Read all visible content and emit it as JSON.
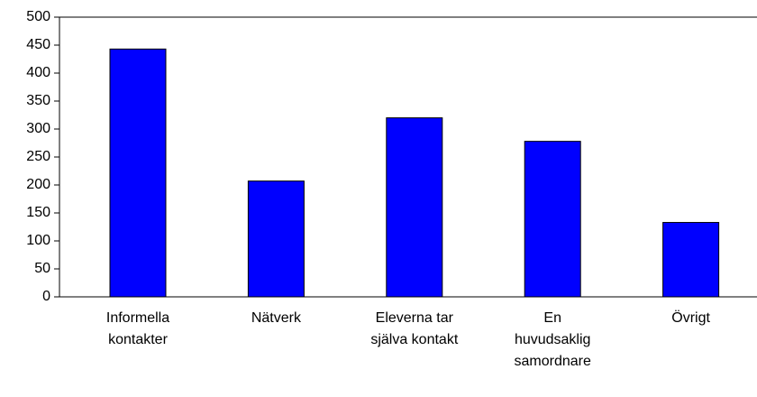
{
  "chart_data": {
    "type": "bar",
    "categories": [
      "Informella kontakter",
      "Nätverk",
      "Eleverna tar själva kontakt",
      "En huvudsaklig samordnare",
      "Övrigt"
    ],
    "values": [
      443,
      207,
      320,
      278,
      133
    ],
    "color": "#0000ff",
    "ylim": [
      0,
      500
    ],
    "yticks": [
      0,
      50,
      100,
      150,
      200,
      250,
      300,
      350,
      400,
      450,
      500
    ],
    "grid": false
  }
}
